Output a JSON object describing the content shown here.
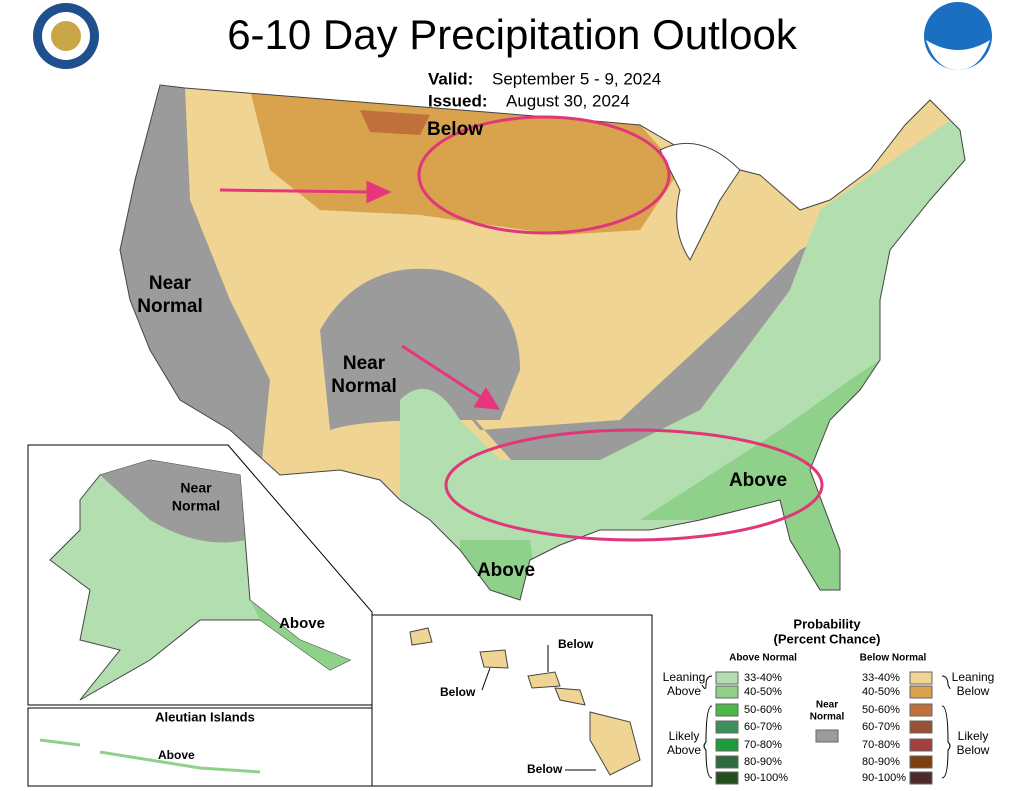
{
  "title": "6-10 Day Precipitation Outlook",
  "valid": {
    "label": "Valid:",
    "value": "September 5 - 9, 2024"
  },
  "issued": {
    "label": "Issued:",
    "value": "August 30, 2024"
  },
  "map_labels": {
    "north": "Below",
    "west": [
      "Near",
      "Normal"
    ],
    "central": [
      "Near",
      "Normal"
    ],
    "southeast": "Above",
    "texas": "Above"
  },
  "alaska": {
    "near": [
      "Near",
      "Normal"
    ],
    "above": "Above"
  },
  "aleutian": {
    "title": "Aleutian Islands",
    "above": "Above"
  },
  "hawaii": {
    "labels": [
      "Below",
      "Below",
      "Below"
    ]
  },
  "legend": {
    "title": "Probability",
    "subtitle": "(Percent Chance)",
    "above_header": "Above Normal",
    "below_header": "Below Normal",
    "near": {
      "lines": [
        "Near",
        "Normal"
      ],
      "color": "#9b9b9b"
    },
    "leaning_above": [
      "Leaning",
      "Above"
    ],
    "likely_above": [
      "Likely",
      "Above"
    ],
    "leaning_below": [
      "Leaning",
      "Below"
    ],
    "likely_below": [
      "Likely",
      "Below"
    ],
    "above_items": [
      {
        "label": "33-40%",
        "color": "#b3dfb0"
      },
      {
        "label": "40-50%",
        "color": "#8fd18a"
      },
      {
        "label": "50-60%",
        "color": "#4cb847"
      },
      {
        "label": "60-70%",
        "color": "#3c8f5a"
      },
      {
        "label": "70-80%",
        "color": "#1e9b3a"
      },
      {
        "label": "80-90%",
        "color": "#2e6b3c"
      },
      {
        "label": "90-100%",
        "color": "#244d1c"
      }
    ],
    "below_items": [
      {
        "label": "33-40%",
        "color": "#f0d493"
      },
      {
        "label": "40-50%",
        "color": "#d8a34c"
      },
      {
        "label": "50-60%",
        "color": "#c0703a"
      },
      {
        "label": "60-70%",
        "color": "#9a5035"
      },
      {
        "label": "70-80%",
        "color": "#a04040"
      },
      {
        "label": "80-90%",
        "color": "#7b3f10"
      },
      {
        "label": "90-100%",
        "color": "#4a2a2a"
      }
    ]
  }
}
